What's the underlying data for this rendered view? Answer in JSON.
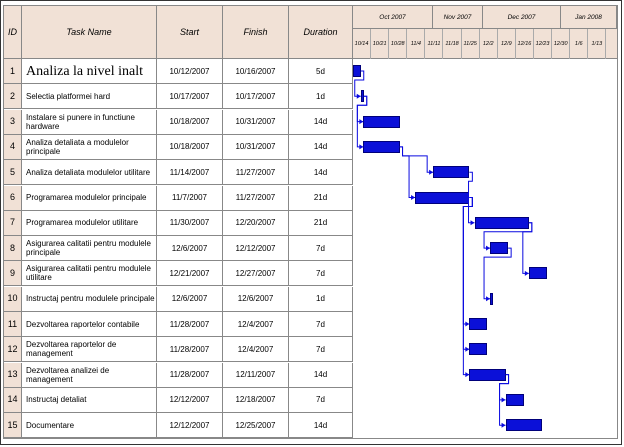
{
  "headers": {
    "id": "ID",
    "task": "Task Name",
    "start": "Start",
    "finish": "Finish",
    "duration": "Duration"
  },
  "months": [
    "Oct 2007",
    "Nov 2007",
    "Dec 2007",
    "Jan 2008"
  ],
  "weeks": [
    "10/14",
    "10/21",
    "10/28",
    "11/4",
    "11/11",
    "11/18",
    "11/25",
    "12/2",
    "12/9",
    "12/16",
    "12/23",
    "12/30",
    "1/6",
    "1/13"
  ],
  "tasks": [
    {
      "id": "1",
      "name": "Analiza la nivel inalt",
      "start": "10/12/2007",
      "finish": "10/16/2007",
      "duration": "5d"
    },
    {
      "id": "2",
      "name": "Selectia platformei hard",
      "start": "10/17/2007",
      "finish": "10/17/2007",
      "duration": "1d"
    },
    {
      "id": "3",
      "name": "Instalare si punere in functiune hardware",
      "start": "10/18/2007",
      "finish": "10/31/2007",
      "duration": "14d"
    },
    {
      "id": "4",
      "name": "Analiza detaliata a modulelor principale",
      "start": "10/18/2007",
      "finish": "10/31/2007",
      "duration": "14d"
    },
    {
      "id": "5",
      "name": "Analiza detaliata modulelor utilitare",
      "start": "11/14/2007",
      "finish": "11/27/2007",
      "duration": "14d"
    },
    {
      "id": "6",
      "name": "Programarea modulelor principale",
      "start": "11/7/2007",
      "finish": "11/27/2007",
      "duration": "21d"
    },
    {
      "id": "7",
      "name": "Programarea modulelor utilitare",
      "start": "11/30/2007",
      "finish": "12/20/2007",
      "duration": "21d"
    },
    {
      "id": "8",
      "name": "Asigurarea calitatii pentru modulele principale",
      "start": "12/6/2007",
      "finish": "12/12/2007",
      "duration": "7d"
    },
    {
      "id": "9",
      "name": "Asigurarea calitatii pentru modulele utilitare",
      "start": "12/21/2007",
      "finish": "12/27/2007",
      "duration": "7d"
    },
    {
      "id": "10",
      "name": "Instructaj pentru modulele principale",
      "start": "12/6/2007",
      "finish": "12/6/2007",
      "duration": "1d"
    },
    {
      "id": "11",
      "name": "Dezvoltarea raportelor contabile",
      "start": "11/28/2007",
      "finish": "12/4/2007",
      "duration": "7d"
    },
    {
      "id": "12",
      "name": "Dezvoltarea raportelor de management",
      "start": "11/28/2007",
      "finish": "12/4/2007",
      "duration": "7d"
    },
    {
      "id": "13",
      "name": "Dezvoltarea analizei de management",
      "start": "11/28/2007",
      "finish": "12/11/2007",
      "duration": "14d"
    },
    {
      "id": "14",
      "name": "Instructaj detaliat",
      "start": "12/12/2007",
      "finish": "12/18/2007",
      "duration": "7d"
    },
    {
      "id": "15",
      "name": "Documentare",
      "start": "12/12/2007",
      "finish": "12/25/2007",
      "duration": "14d"
    }
  ],
  "colors": {
    "header_bg": "#f1e1d6",
    "bar": "#0b10d8",
    "link": "#0a0ae0"
  }
}
